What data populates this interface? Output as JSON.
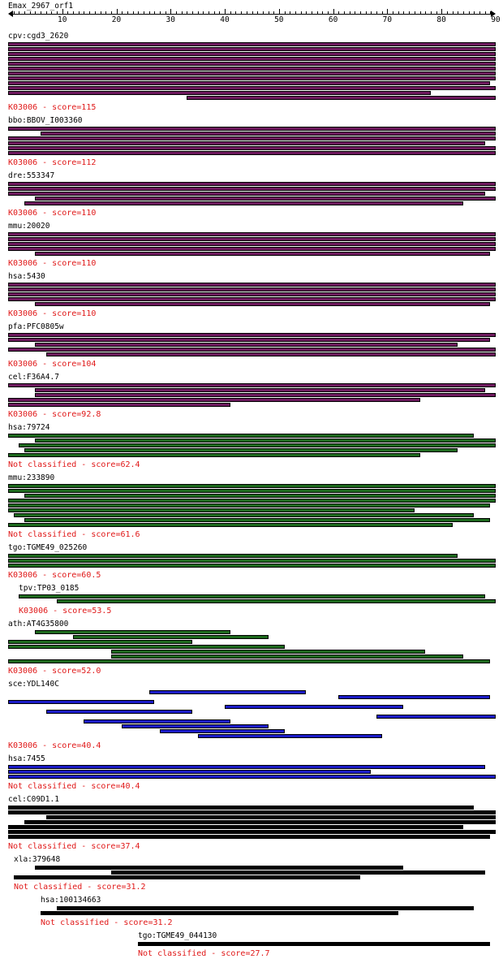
{
  "query": {
    "name": "Emax_2967_orf1",
    "length": 90
  },
  "axis": {
    "ticks": [
      10,
      20,
      30,
      40,
      50,
      60,
      70,
      80,
      90
    ]
  },
  "colors": {
    "score_text": "#e01818",
    "purple": "#6e1a5e",
    "green": "#1e6a1e",
    "blue": "#1c1cc8",
    "black": "#000000"
  },
  "hits": [
    {
      "label": "cpv:cgd3_2620",
      "score_text": "K03006 - score=115",
      "color": "purple",
      "indent": 0,
      "segments": [
        [
          0,
          90
        ],
        [
          0,
          90
        ],
        [
          0,
          90
        ],
        [
          0,
          90
        ],
        [
          0,
          90
        ],
        [
          0,
          90
        ],
        [
          0,
          90
        ],
        [
          0,
          90
        ],
        [
          0,
          89
        ],
        [
          0,
          90
        ],
        [
          0,
          78
        ],
        [
          33,
          90
        ]
      ]
    },
    {
      "label": "bbo:BBOV_I003360",
      "score_text": "K03006 - score=112",
      "color": "purple",
      "indent": 0,
      "segments": [
        [
          0,
          90
        ],
        [
          6,
          90
        ],
        [
          0,
          90
        ],
        [
          0,
          88
        ],
        [
          0,
          90
        ],
        [
          0,
          90
        ]
      ]
    },
    {
      "label": "dre:553347",
      "score_text": "K03006 - score=110",
      "color": "purple",
      "indent": 0,
      "segments": [
        [
          0,
          90
        ],
        [
          0,
          90
        ],
        [
          0,
          88
        ],
        [
          5,
          90
        ],
        [
          3,
          84
        ]
      ]
    },
    {
      "label": "mmu:20020",
      "score_text": "K03006 - score=110",
      "color": "purple",
      "indent": 0,
      "segments": [
        [
          0,
          90
        ],
        [
          0,
          90
        ],
        [
          0,
          90
        ],
        [
          0,
          90
        ],
        [
          5,
          89
        ]
      ]
    },
    {
      "label": "hsa:5430",
      "score_text": "K03006 - score=110",
      "color": "purple",
      "indent": 0,
      "segments": [
        [
          0,
          90
        ],
        [
          0,
          90
        ],
        [
          0,
          90
        ],
        [
          0,
          90
        ],
        [
          5,
          89
        ]
      ]
    },
    {
      "label": "pfa:PFC0805w",
      "score_text": "K03006 - score=104",
      "color": "purple",
      "indent": 0,
      "segments": [
        [
          0,
          90
        ],
        [
          0,
          89
        ],
        [
          5,
          83
        ],
        [
          0,
          90
        ],
        [
          7,
          90
        ]
      ]
    },
    {
      "label": "cel:F36A4.7",
      "score_text": "K03006 - score=92.8",
      "color": "purple",
      "indent": 0,
      "segments": [
        [
          0,
          90
        ],
        [
          5,
          88
        ],
        [
          5,
          90
        ],
        [
          0,
          76
        ],
        [
          0,
          41
        ]
      ]
    },
    {
      "label": "hsa:79724",
      "score_text": "Not classified - score=62.4",
      "color": "green",
      "indent": 0,
      "segments": [
        [
          0,
          86
        ],
        [
          5,
          90
        ],
        [
          2,
          90
        ],
        [
          3,
          83
        ],
        [
          0,
          76
        ]
      ]
    },
    {
      "label": "mmu:233890",
      "score_text": "Not classified - score=61.6",
      "color": "green",
      "indent": 0,
      "segments": [
        [
          0,
          90
        ],
        [
          0,
          90
        ],
        [
          3,
          90
        ],
        [
          0,
          90
        ],
        [
          0,
          89
        ],
        [
          0,
          75
        ],
        [
          1,
          86
        ],
        [
          3,
          89
        ],
        [
          0,
          82
        ]
      ]
    },
    {
      "label": "tgo:TGME49_025260",
      "score_text": "K03006 - score=60.5",
      "color": "green",
      "indent": 0,
      "segments": [
        [
          0,
          83
        ],
        [
          0,
          90
        ],
        [
          0,
          90
        ]
      ]
    },
    {
      "label": "tpv:TP03_0185",
      "score_text": "K03006 - score=53.5",
      "color": "green",
      "indent": 2,
      "segments": [
        [
          2,
          88
        ],
        [
          9,
          90
        ]
      ]
    },
    {
      "label": "ath:AT4G35800",
      "score_text": "K03006 - score=52.0",
      "color": "green",
      "indent": 0,
      "segments": [
        [
          5,
          41
        ],
        [
          12,
          48
        ],
        [
          0,
          34
        ],
        [
          0,
          51
        ],
        [
          19,
          77
        ],
        [
          19,
          84
        ],
        [
          0,
          89
        ]
      ]
    },
    {
      "label": "sce:YDL140C",
      "score_text": "K03006 - score=40.4",
      "color": "blue",
      "indent": 0,
      "segments": [
        [
          26,
          55
        ],
        [
          61,
          89
        ],
        [
          0,
          27
        ],
        [
          40,
          73
        ],
        [
          7,
          34
        ],
        [
          68,
          90
        ],
        [
          14,
          41
        ],
        [
          21,
          48
        ],
        [
          28,
          51
        ],
        [
          35,
          69
        ]
      ]
    },
    {
      "label": "hsa:7455",
      "score_text": "Not classified - score=40.4",
      "color": "blue",
      "indent": 0,
      "segments": [
        [
          0,
          88
        ],
        [
          0,
          67
        ],
        [
          0,
          90
        ]
      ]
    },
    {
      "label": "cel:C09D1.1",
      "score_text": "Not classified - score=37.4",
      "color": "black",
      "indent": 0,
      "segments": [
        [
          0,
          86
        ],
        [
          0,
          90
        ],
        [
          7,
          90
        ],
        [
          3,
          90
        ],
        [
          0,
          84
        ],
        [
          0,
          90
        ],
        [
          0,
          89
        ]
      ]
    },
    {
      "label": "xla:379648",
      "score_text": "Not classified - score=31.2",
      "color": "black",
      "indent": 1,
      "segments": [
        [
          5,
          73
        ],
        [
          19,
          88
        ],
        [
          1,
          65
        ]
      ]
    },
    {
      "label": "hsa:100134663",
      "score_text": "Not classified - score=31.2",
      "color": "black",
      "indent": 6,
      "segments": [
        [
          9,
          86
        ],
        [
          6,
          72
        ]
      ]
    },
    {
      "label": "tgo:TGME49_044130",
      "score_text": "Not classified - score=27.7",
      "color": "black",
      "indent": 24,
      "segments": [
        [
          24,
          89
        ]
      ]
    }
  ]
}
